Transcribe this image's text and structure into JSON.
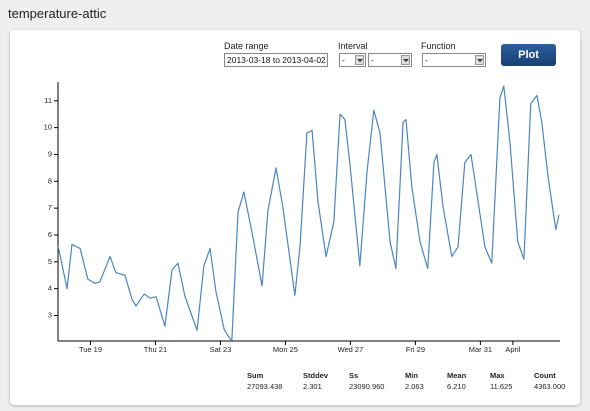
{
  "header": {
    "title": "temperature-attic"
  },
  "form": {
    "date_range_label": "Date range",
    "date_range_value": "2013-03-18 to 2013-04-02",
    "interval_label": "Interval",
    "interval_count": "-",
    "interval_unit": "-",
    "function_label": "Function",
    "function_value": "-",
    "button": "Plot"
  },
  "chart_data": {
    "type": "line",
    "color": "#4a86c0",
    "x": [
      18.0,
      18.28,
      18.43,
      18.68,
      18.92,
      19.14,
      19.29,
      19.6,
      19.78,
      20.06,
      20.28,
      20.4,
      20.65,
      20.83,
      21.02,
      21.29,
      21.51,
      21.69,
      21.91,
      22.28,
      22.49,
      22.68,
      22.86,
      23.11,
      23.23,
      23.35,
      23.54,
      23.72,
      23.97,
      24.28,
      24.46,
      24.71,
      24.92,
      25.29,
      25.45,
      25.66,
      25.82,
      26.0,
      26.25,
      26.49,
      26.68,
      26.83,
      26.98,
      27.29,
      27.51,
      27.72,
      27.91,
      28.22,
      28.4,
      28.62,
      28.71,
      28.89,
      29.14,
      29.38,
      29.57,
      29.66,
      29.85,
      30.12,
      30.31,
      30.52,
      30.71,
      30.86,
      31.14,
      31.35,
      31.6,
      31.72,
      31.91,
      32.15,
      32.34,
      32.55,
      32.74,
      32.89,
      33.08,
      33.32,
      33.42
    ],
    "values": [
      5.6,
      4.0,
      5.65,
      5.5,
      4.35,
      4.2,
      4.25,
      5.2,
      4.6,
      4.5,
      3.6,
      3.35,
      3.8,
      3.65,
      3.7,
      2.6,
      4.7,
      4.95,
      3.7,
      2.45,
      4.85,
      5.5,
      3.9,
      2.5,
      2.25,
      2.07,
      6.85,
      7.6,
      6.1,
      4.1,
      6.9,
      8.5,
      7.05,
      3.75,
      5.6,
      9.8,
      9.9,
      7.25,
      5.2,
      6.5,
      10.5,
      10.3,
      8.7,
      4.85,
      8.35,
      10.65,
      9.8,
      5.75,
      4.75,
      10.2,
      10.3,
      7.8,
      5.75,
      4.75,
      8.7,
      9.0,
      7.05,
      5.2,
      5.55,
      8.7,
      9.0,
      7.8,
      5.55,
      4.95,
      11.1,
      11.55,
      9.45,
      5.75,
      5.1,
      10.9,
      11.2,
      10.2,
      8.2,
      6.2,
      6.75
    ],
    "xlim": [
      18,
      33.45
    ],
    "ylim": [
      2.05,
      11.7
    ],
    "yticks": [
      3,
      4,
      5,
      6,
      7,
      8,
      9,
      10,
      11
    ],
    "xticks": [
      {
        "value": 19,
        "label": "Tue 19"
      },
      {
        "value": 21,
        "label": "Thu 21"
      },
      {
        "value": 23,
        "label": "Sat 23"
      },
      {
        "value": 25,
        "label": "Mon 25"
      },
      {
        "value": 27,
        "label": "Wed 27"
      },
      {
        "value": 29,
        "label": "Fri 29"
      },
      {
        "value": 31,
        "label": "Mar 31"
      },
      {
        "value": 32,
        "label": "April"
      }
    ]
  },
  "stats": {
    "headers": [
      "Sum",
      "Stddev",
      "Ss",
      "Min",
      "Mean",
      "Max",
      "Count"
    ],
    "values": [
      "27093.438",
      "2.301",
      "23090.960",
      "2.063",
      "6.210",
      "11.625",
      "4363.000"
    ]
  }
}
